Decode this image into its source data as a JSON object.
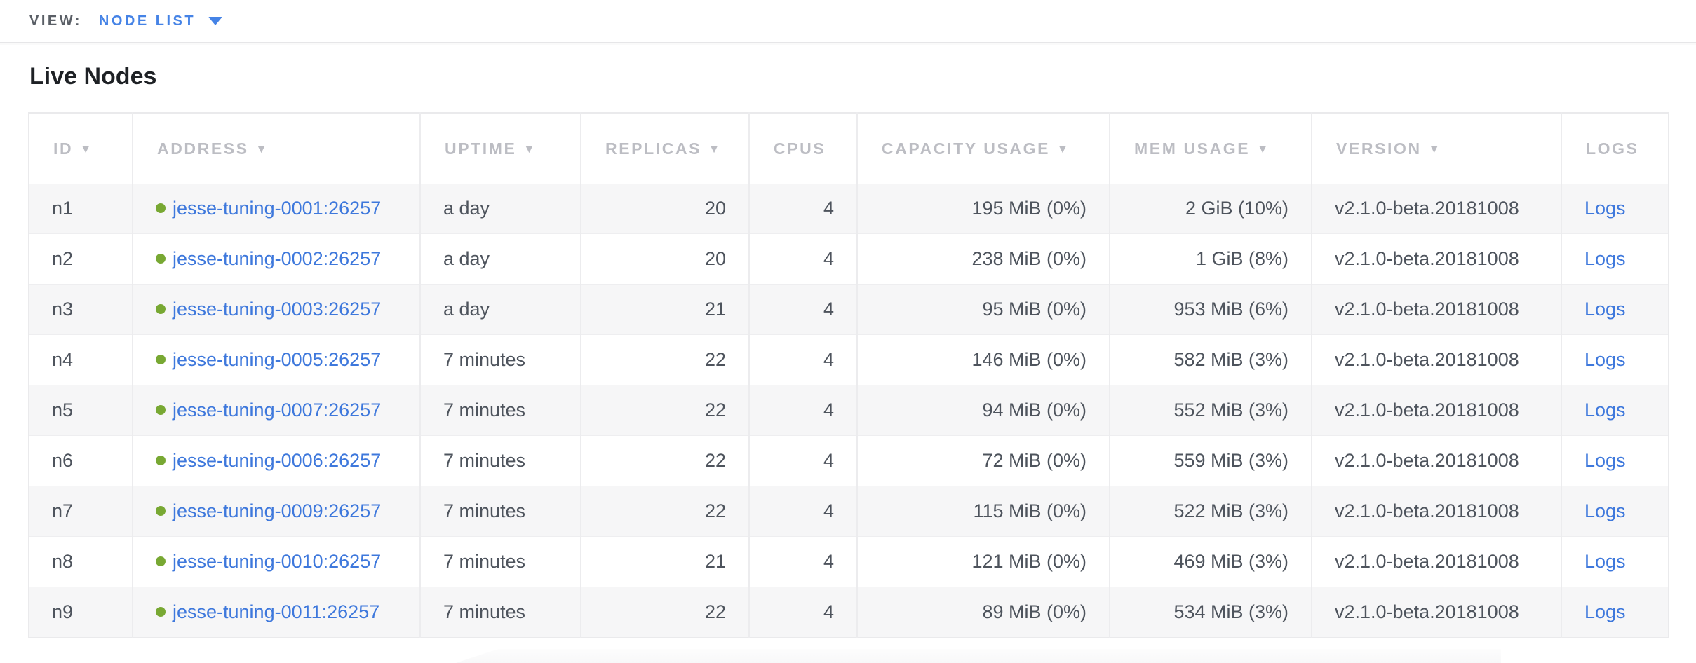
{
  "subnav": {
    "view_label": "VIEW:",
    "selected_view": "NODE LIST"
  },
  "page": {
    "title": "Live Nodes"
  },
  "colors": {
    "accent_link_blue": "#3e78dc",
    "subnav_blue": "#4583e6",
    "live_dot_green": "#78a833",
    "header_gray": "#bcbdc3",
    "cell_text": "#4e545d",
    "row_stripe": "#f6f6f7"
  },
  "icons": {
    "dropdown": "chevron-down-icon",
    "sort": "sort-desc-arrow-icon",
    "node_status": "green-dot-icon"
  },
  "table": {
    "columns": [
      {
        "key": "id",
        "label": "ID",
        "sortable": true
      },
      {
        "key": "address",
        "label": "ADDRESS",
        "sortable": true
      },
      {
        "key": "uptime",
        "label": "UPTIME",
        "sortable": true
      },
      {
        "key": "replicas",
        "label": "REPLICAS",
        "sortable": true
      },
      {
        "key": "cpus",
        "label": "CPUS",
        "sortable": false
      },
      {
        "key": "capacity_usage",
        "label": "CAPACITY USAGE",
        "sortable": true
      },
      {
        "key": "mem_usage",
        "label": "MEM USAGE",
        "sortable": true
      },
      {
        "key": "version",
        "label": "VERSION",
        "sortable": true
      },
      {
        "key": "logs",
        "label": "LOGS",
        "sortable": false
      }
    ],
    "rows": [
      {
        "id": "n1",
        "address": "jesse-tuning-0001:26257",
        "uptime": "a day",
        "replicas": "20",
        "cpus": "4",
        "capacity_usage": "195 MiB (0%)",
        "mem_usage": "2 GiB (10%)",
        "version": "v2.1.0-beta.20181008",
        "logs": "Logs"
      },
      {
        "id": "n2",
        "address": "jesse-tuning-0002:26257",
        "uptime": "a day",
        "replicas": "20",
        "cpus": "4",
        "capacity_usage": "238 MiB (0%)",
        "mem_usage": "1 GiB (8%)",
        "version": "v2.1.0-beta.20181008",
        "logs": "Logs"
      },
      {
        "id": "n3",
        "address": "jesse-tuning-0003:26257",
        "uptime": "a day",
        "replicas": "21",
        "cpus": "4",
        "capacity_usage": "95 MiB (0%)",
        "mem_usage": "953 MiB (6%)",
        "version": "v2.1.0-beta.20181008",
        "logs": "Logs"
      },
      {
        "id": "n4",
        "address": "jesse-tuning-0005:26257",
        "uptime": "7 minutes",
        "replicas": "22",
        "cpus": "4",
        "capacity_usage": "146 MiB (0%)",
        "mem_usage": "582 MiB (3%)",
        "version": "v2.1.0-beta.20181008",
        "logs": "Logs"
      },
      {
        "id": "n5",
        "address": "jesse-tuning-0007:26257",
        "uptime": "7 minutes",
        "replicas": "22",
        "cpus": "4",
        "capacity_usage": "94 MiB (0%)",
        "mem_usage": "552 MiB (3%)",
        "version": "v2.1.0-beta.20181008",
        "logs": "Logs"
      },
      {
        "id": "n6",
        "address": "jesse-tuning-0006:26257",
        "uptime": "7 minutes",
        "replicas": "22",
        "cpus": "4",
        "capacity_usage": "72 MiB (0%)",
        "mem_usage": "559 MiB (3%)",
        "version": "v2.1.0-beta.20181008",
        "logs": "Logs"
      },
      {
        "id": "n7",
        "address": "jesse-tuning-0009:26257",
        "uptime": "7 minutes",
        "replicas": "22",
        "cpus": "4",
        "capacity_usage": "115 MiB (0%)",
        "mem_usage": "522 MiB (3%)",
        "version": "v2.1.0-beta.20181008",
        "logs": "Logs"
      },
      {
        "id": "n8",
        "address": "jesse-tuning-0010:26257",
        "uptime": "7 minutes",
        "replicas": "21",
        "cpus": "4",
        "capacity_usage": "121 MiB (0%)",
        "mem_usage": "469 MiB (3%)",
        "version": "v2.1.0-beta.20181008",
        "logs": "Logs"
      },
      {
        "id": "n9",
        "address": "jesse-tuning-0011:26257",
        "uptime": "7 minutes",
        "replicas": "22",
        "cpus": "4",
        "capacity_usage": "89 MiB (0%)",
        "mem_usage": "534 MiB (3%)",
        "version": "v2.1.0-beta.20181008",
        "logs": "Logs"
      }
    ]
  }
}
